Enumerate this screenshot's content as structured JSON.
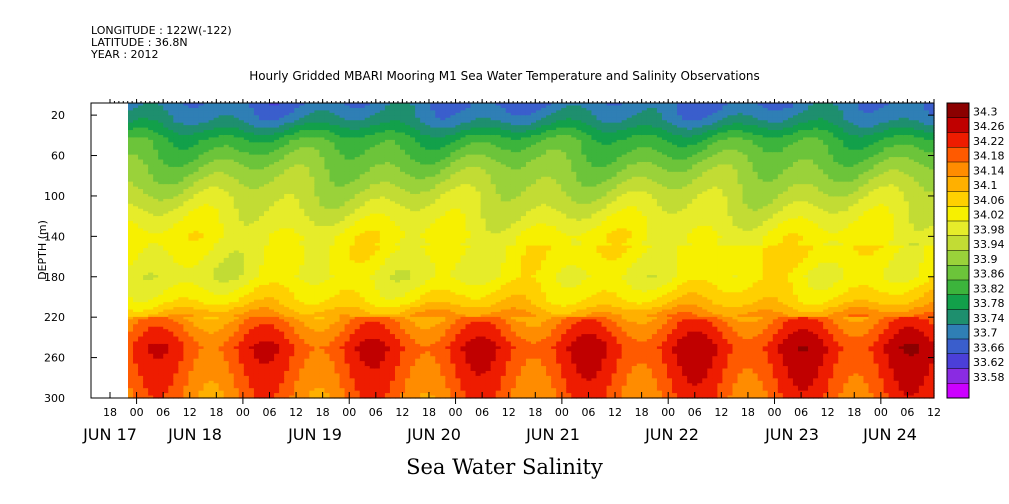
{
  "header": {
    "longitude": "LONGITUDE : 122W(-122)",
    "latitude": "LATITUDE : 36.8N",
    "year": "YEAR : 2012"
  },
  "chart_data": {
    "type": "heatmap",
    "title": "Hourly Gridded MBARI Mooring M1 Sea Water Temperature and Salinity Observations",
    "bottom_title": "Sea Water Salinity",
    "ylabel": "DEPTH (m)",
    "y_ticks": [
      20,
      60,
      100,
      140,
      180,
      220,
      260,
      300
    ],
    "ylim": [
      300,
      8
    ],
    "x_hour_ticks": [
      "18",
      "00",
      "06",
      "12",
      "18",
      "00",
      "06",
      "12",
      "18",
      "00",
      "06",
      "12",
      "18",
      "00",
      "06",
      "12",
      "18",
      "00",
      "06",
      "12",
      "18",
      "00",
      "06",
      "12",
      "18",
      "00",
      "06",
      "12",
      "18",
      "00",
      "06",
      "12"
    ],
    "x_date_labels": [
      "JUN 17",
      "JUN 18",
      "JUN 19",
      "JUN 20",
      "JUN 21",
      "JUN 22",
      "JUN 23",
      "JUN 24"
    ],
    "data_start_hour": 0,
    "colorbar": {
      "levels": [
        33.58,
        33.62,
        33.66,
        33.7,
        33.74,
        33.78,
        33.82,
        33.86,
        33.9,
        33.94,
        33.98,
        34.02,
        34.06,
        34.1,
        34.14,
        34.18,
        34.22,
        34.26,
        34.3
      ],
      "labels": [
        "34.3",
        "34.26",
        "34.22",
        "34.18",
        "34.14",
        "34.1",
        "34.06",
        "34.02",
        "33.98",
        "33.94",
        "33.9",
        "33.86",
        "33.82",
        "33.78",
        "33.74",
        "33.7",
        "33.66",
        "33.62",
        "33.58"
      ],
      "colors": [
        "#cc00ff",
        "#8a2be2",
        "#4b3fd8",
        "#3a5ecc",
        "#2f7fb5",
        "#1e8f6e",
        "#12a04a",
        "#3cb43c",
        "#6cc43a",
        "#9ad23a",
        "#c2dc34",
        "#e6ec2a",
        "#f7f000",
        "#ffd000",
        "#ffb000",
        "#ff8c00",
        "#ff5a00",
        "#ee1c00",
        "#c00000",
        "#8b0000"
      ]
    },
    "salinity_profile": [
      {
        "depth": 8,
        "value": 33.7
      },
      {
        "depth": 25,
        "value": 33.74
      },
      {
        "depth": 45,
        "value": 33.84
      },
      {
        "depth": 70,
        "value": 33.9
      },
      {
        "depth": 100,
        "value": 33.96
      },
      {
        "depth": 140,
        "value": 34.03
      },
      {
        "depth": 180,
        "value": 34.0
      },
      {
        "depth": 205,
        "value": 34.06
      },
      {
        "depth": 225,
        "value": 34.16
      },
      {
        "depth": 250,
        "value": 34.22
      },
      {
        "depth": 270,
        "value": 34.2
      },
      {
        "depth": 300,
        "value": 34.17
      }
    ]
  }
}
